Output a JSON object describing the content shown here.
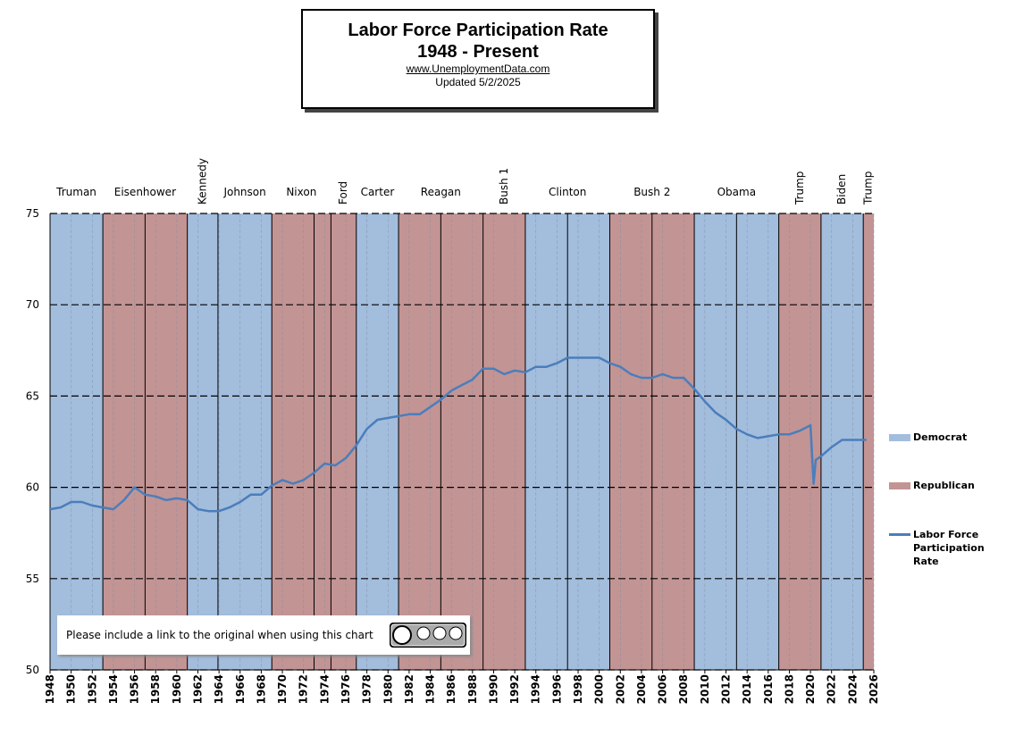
{
  "chart_data": {
    "type": "line",
    "title": "Labor Force Participation Rate",
    "subtitle": "1948 - Present",
    "source": "www.UnemploymentData.com",
    "updated": "Updated  5/2/2025",
    "note": "Please include a link to the original when using this chart",
    "xlim": [
      1948,
      2026
    ],
    "xticks": [
      1948,
      1950,
      1952,
      1954,
      1956,
      1958,
      1960,
      1962,
      1964,
      1966,
      1968,
      1970,
      1972,
      1974,
      1976,
      1978,
      1980,
      1982,
      1984,
      1986,
      1988,
      1990,
      1992,
      1994,
      1996,
      1998,
      2000,
      2002,
      2004,
      2006,
      2008,
      2010,
      2012,
      2014,
      2016,
      2018,
      2020,
      2022,
      2024,
      2026
    ],
    "ylim": [
      50,
      75
    ],
    "yticks": [
      50,
      55,
      60,
      65,
      70,
      75
    ],
    "grid": true,
    "band_legend": [
      {
        "name": "Democrat",
        "color": "#a3bddd"
      },
      {
        "name": "Republican",
        "color": "#c39494"
      }
    ],
    "bands": [
      {
        "name": "Truman",
        "start": 1948,
        "end": 1953,
        "party": "Democrat",
        "vertical_label": false
      },
      {
        "name": "Eisenhower",
        "start": 1953,
        "end": 1961,
        "party": "Republican",
        "vertical_label": false
      },
      {
        "name": "Kennedy",
        "start": 1961,
        "end": 1963.9,
        "party": "Democrat",
        "vertical_label": true
      },
      {
        "name": "Johnson",
        "start": 1963.9,
        "end": 1969,
        "party": "Democrat",
        "vertical_label": false
      },
      {
        "name": "Nixon",
        "start": 1969,
        "end": 1974.6,
        "party": "Republican",
        "vertical_label": false
      },
      {
        "name": "Ford",
        "start": 1974.6,
        "end": 1977,
        "party": "Republican",
        "vertical_label": true
      },
      {
        "name": "Carter",
        "start": 1977,
        "end": 1981,
        "party": "Democrat",
        "vertical_label": false
      },
      {
        "name": "Reagan",
        "start": 1981,
        "end": 1989,
        "party": "Republican",
        "vertical_label": false
      },
      {
        "name": "Bush 1",
        "start": 1989,
        "end": 1993,
        "party": "Republican",
        "vertical_label": true
      },
      {
        "name": "Clinton",
        "start": 1993,
        "end": 2001,
        "party": "Democrat",
        "vertical_label": false
      },
      {
        "name": "Bush 2",
        "start": 2001,
        "end": 2009,
        "party": "Republican",
        "vertical_label": false
      },
      {
        "name": "Obama",
        "start": 2009,
        "end": 2017,
        "party": "Democrat",
        "vertical_label": false
      },
      {
        "name": "Trump",
        "start": 2017,
        "end": 2021,
        "party": "Republican",
        "vertical_label": true
      },
      {
        "name": "Biden",
        "start": 2021,
        "end": 2025,
        "party": "Democrat",
        "vertical_label": true
      },
      {
        "name": "Trump",
        "start": 2025,
        "end": 2026,
        "party": "Republican",
        "vertical_label": true
      }
    ],
    "term_starts": [
      1953,
      1957,
      1961,
      1963.9,
      1969,
      1973,
      1974.6,
      1977,
      1981,
      1985,
      1989,
      1993,
      1997,
      2001,
      2005,
      2009,
      2013,
      2017,
      2021,
      2025
    ],
    "series": [
      {
        "name": "Labor Force Participation Rate",
        "color": "#4a7ebb",
        "x": [
          1948,
          1949,
          1950,
          1951,
          1952,
          1953,
          1954,
          1955,
          1956,
          1957,
          1958,
          1959,
          1960,
          1961,
          1962,
          1963,
          1964,
          1965,
          1966,
          1967,
          1968,
          1969,
          1970,
          1971,
          1972,
          1973,
          1974,
          1975,
          1976,
          1977,
          1978,
          1979,
          1980,
          1981,
          1982,
          1983,
          1984,
          1985,
          1986,
          1987,
          1988,
          1989,
          1990,
          1991,
          1992,
          1993,
          1994,
          1995,
          1996,
          1997,
          1998,
          1999,
          2000,
          2001,
          2002,
          2003,
          2004,
          2005,
          2006,
          2007,
          2008,
          2009,
          2010,
          2011,
          2012,
          2013,
          2014,
          2015,
          2016,
          2017,
          2018,
          2019,
          2020,
          2020.3,
          2020.5,
          2021,
          2022,
          2023,
          2024,
          2025.3
        ],
        "values": [
          58.8,
          58.9,
          59.2,
          59.2,
          59.0,
          58.9,
          58.8,
          59.3,
          60.0,
          59.6,
          59.5,
          59.3,
          59.4,
          59.3,
          58.8,
          58.7,
          58.7,
          58.9,
          59.2,
          59.6,
          59.6,
          60.1,
          60.4,
          60.2,
          60.4,
          60.8,
          61.3,
          61.2,
          61.6,
          62.3,
          63.2,
          63.7,
          63.8,
          63.9,
          64.0,
          64.0,
          64.4,
          64.8,
          65.3,
          65.6,
          65.9,
          66.5,
          66.5,
          66.2,
          66.4,
          66.3,
          66.6,
          66.6,
          66.8,
          67.1,
          67.1,
          67.1,
          67.1,
          66.8,
          66.6,
          66.2,
          66.0,
          66.0,
          66.2,
          66.0,
          66.0,
          65.4,
          64.7,
          64.1,
          63.7,
          63.2,
          62.9,
          62.7,
          62.8,
          62.9,
          62.9,
          63.1,
          63.4,
          60.2,
          61.5,
          61.7,
          62.2,
          62.6,
          62.6,
          62.6
        ]
      }
    ]
  }
}
